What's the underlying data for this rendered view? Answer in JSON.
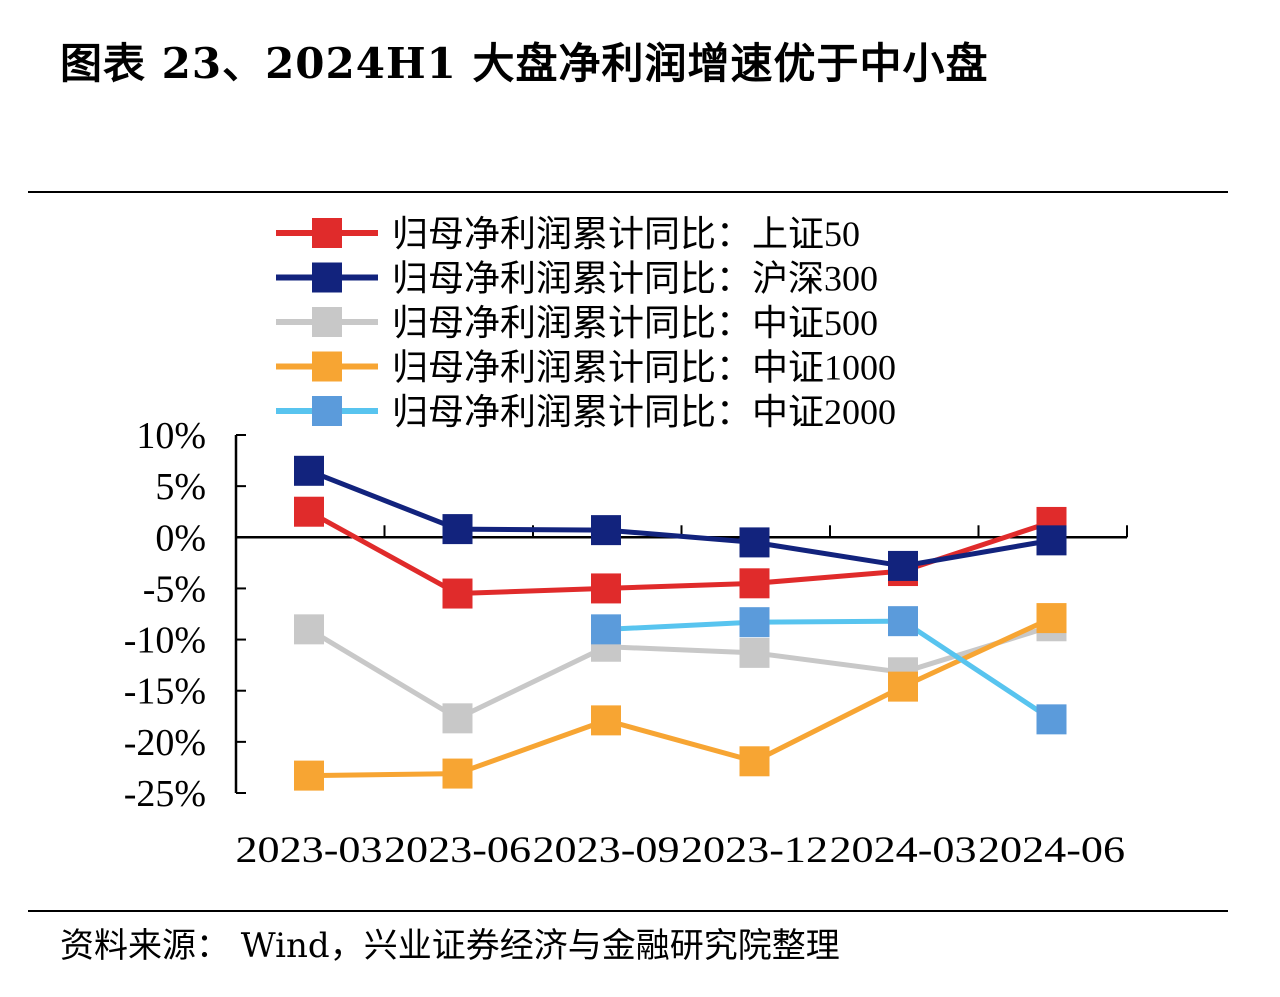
{
  "title": "图表 23、2024H1 大盘净利润增速优于中小盘",
  "source": "资料来源： Wind，兴业证券经济与金融研究院整理",
  "chart_data": {
    "type": "line",
    "title": "图表 23、2024H1 大盘净利润增速优于中小盘",
    "xlabel": "",
    "ylabel": "",
    "categories": [
      "2023-03",
      "2023-06",
      "2023-09",
      "2023-12",
      "2024-03",
      "2024-06"
    ],
    "ylim": [
      -25,
      10
    ],
    "yticks": [
      10,
      5,
      0,
      -5,
      -10,
      -15,
      -20,
      -25
    ],
    "ytick_labels": [
      "10%",
      "5%",
      "0%",
      "-5%",
      "-10%",
      "-15%",
      "-20%",
      "-25%"
    ],
    "grid": false,
    "legend_position": "top",
    "series": [
      {
        "name": "归母净利润累计同比：上证50",
        "color": "#e02b2b",
        "values": [
          2.5,
          -5.5,
          -5.0,
          -4.5,
          -3.3,
          1.5
        ]
      },
      {
        "name": "归母净利润累计同比：沪深300",
        "color": "#12237d",
        "values": [
          6.5,
          0.8,
          0.7,
          -0.5,
          -2.8,
          -0.3
        ]
      },
      {
        "name": "归母净利润累计同比：中证500",
        "color": "#c8c8c8",
        "values": [
          -9.0,
          -17.7,
          -10.7,
          -11.3,
          -13.2,
          -8.7
        ]
      },
      {
        "name": "归母净利润累计同比：中证1000",
        "color": "#f7a533",
        "values": [
          -23.3,
          -23.1,
          -17.9,
          -21.9,
          -14.6,
          -7.9
        ]
      },
      {
        "name": "归母净利润累计同比：中证2000",
        "color": "#58c4ef",
        "marker_color": "#5b9bdb",
        "values": [
          null,
          null,
          -9.0,
          -8.3,
          -8.2,
          -17.8
        ]
      }
    ]
  }
}
